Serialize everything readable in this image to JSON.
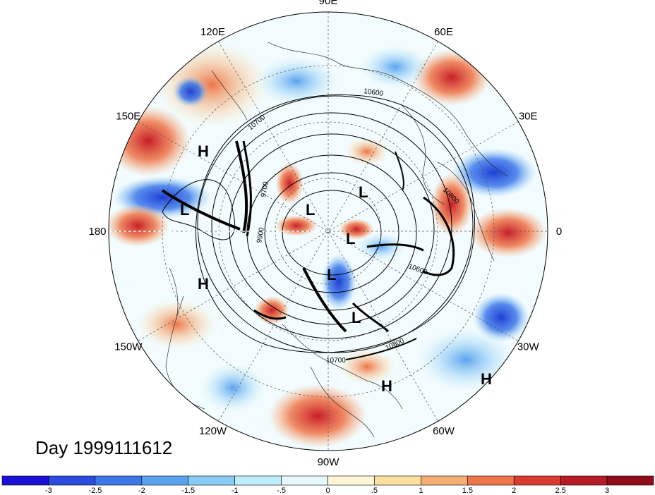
{
  "title": "Day 1999111612",
  "longitude_labels": [
    {
      "text": "90E",
      "angle": 0
    },
    {
      "text": "60E",
      "angle": 30
    },
    {
      "text": "30E",
      "angle": 60
    },
    {
      "text": "0",
      "angle": 90
    },
    {
      "text": "30W",
      "angle": 120
    },
    {
      "text": "60W",
      "angle": 150
    },
    {
      "text": "90W",
      "angle": 180
    },
    {
      "text": "120W",
      "angle": 210
    },
    {
      "text": "150W",
      "angle": 240
    },
    {
      "text": "180",
      "angle": 270
    },
    {
      "text": "150E",
      "angle": 300
    },
    {
      "text": "120E",
      "angle": 330
    }
  ],
  "pressure_markers": [
    {
      "text": "H",
      "type": "high"
    },
    {
      "text": "L",
      "type": "low"
    },
    {
      "text": "L",
      "type": "low"
    },
    {
      "text": "H",
      "type": "high"
    },
    {
      "text": "L",
      "type": "low"
    },
    {
      "text": "L",
      "type": "low"
    },
    {
      "text": "L",
      "type": "low"
    },
    {
      "text": "L",
      "type": "low"
    },
    {
      "text": "L",
      "type": "low"
    },
    {
      "text": "H",
      "type": "high"
    },
    {
      "text": "H",
      "type": "high"
    }
  ],
  "contour_labels": [
    "10600",
    "10700",
    "10800",
    "10600",
    "10800",
    "10700",
    "9900",
    "9700"
  ],
  "colorbar": {
    "tick_labels": [
      "-3",
      "-2.5",
      "-2",
      "-1.5",
      "-1",
      "-.5",
      "0",
      ".5",
      "1",
      "1.5",
      "2",
      "2.5",
      "3"
    ],
    "colors": [
      "#1a0fd4",
      "#2a4ae0",
      "#3c78ea",
      "#5aa3f0",
      "#86ccf6",
      "#bdeefa",
      "#e6f8fc",
      "#fdf6d6",
      "#fbdf9c",
      "#f6ad74",
      "#ee7548",
      "#dc3a30",
      "#b61a24",
      "#8e0c1c"
    ]
  }
}
